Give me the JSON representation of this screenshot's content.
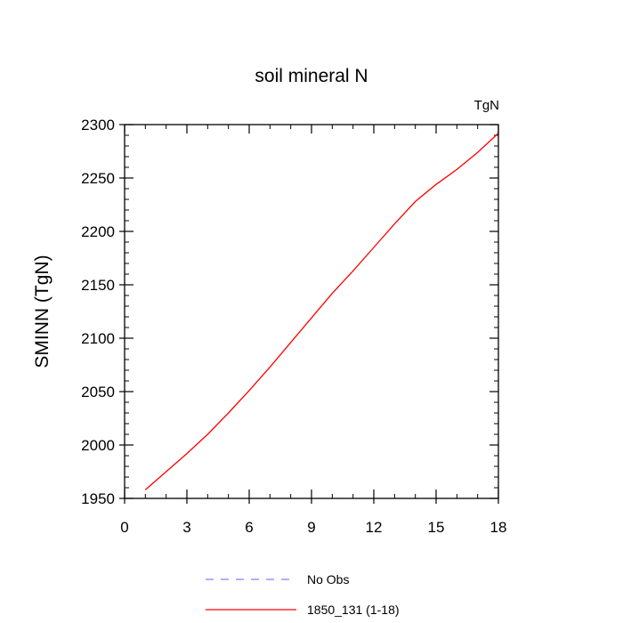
{
  "chart_data": {
    "type": "line",
    "title": "soil mineral N",
    "units_label": "TgN",
    "ylabel": "SMINN  (TgN)",
    "xlabel": "",
    "xlim": [
      0,
      18
    ],
    "ylim": [
      1950,
      2300
    ],
    "x_ticks": [
      "0",
      "3",
      "6",
      "9",
      "12",
      "15",
      "18"
    ],
    "y_ticks": [
      "1950",
      "2000",
      "2050",
      "2100",
      "2150",
      "2200",
      "2250",
      "2300"
    ],
    "grid": false,
    "series": [
      {
        "name": "1850_131 (1-18)",
        "color": "#ff0000",
        "dash": "solid",
        "x": [
          1,
          2,
          3,
          4,
          5,
          6,
          7,
          8,
          9,
          10,
          11,
          12,
          13,
          14,
          15,
          16,
          17,
          18
        ],
        "y": [
          1958,
          1975,
          1992,
          2010,
          2030,
          2051,
          2073,
          2096,
          2119,
          2142,
          2163,
          2185,
          2207,
          2228,
          2244,
          2258,
          2274,
          2292
        ]
      }
    ],
    "legend": {
      "placement": "bottom",
      "entries": [
        {
          "label": "No Obs",
          "color": "#8080ff",
          "dash": "dashed"
        },
        {
          "label": "1850_131 (1-18)",
          "color": "#ff0000",
          "dash": "solid"
        }
      ]
    }
  }
}
